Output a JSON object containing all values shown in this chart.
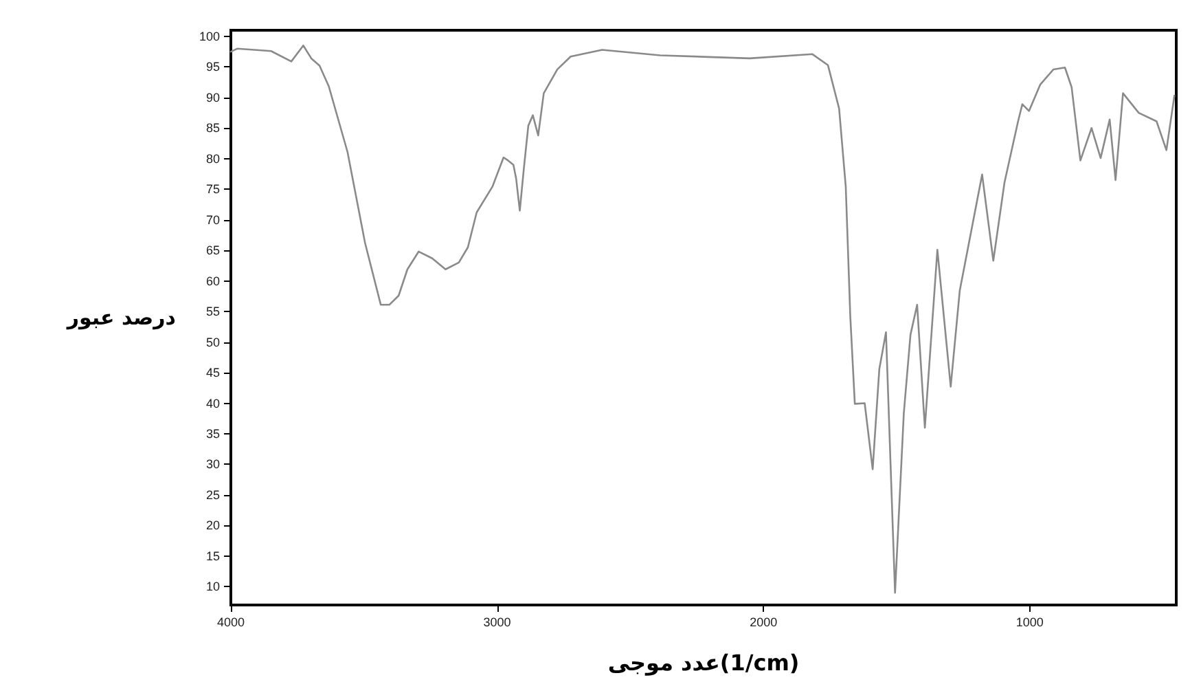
{
  "chart_data": {
    "type": "line",
    "xlabel": "عدد موجی(1/cm)",
    "ylabel": "درصد عبور",
    "x": [
      4000,
      3975,
      3849,
      3773,
      3728,
      3698,
      3667,
      3632,
      3562,
      3496,
      3437,
      3405,
      3370,
      3337,
      3295,
      3244,
      3194,
      3144,
      3110,
      3077,
      3018,
      2976,
      2959,
      2939,
      2929,
      2915,
      2900,
      2883,
      2866,
      2846,
      2825,
      2774,
      2724,
      2606,
      2388,
      2052,
      1817,
      1758,
      1716,
      1691,
      1674,
      1657,
      1620,
      1590,
      1565,
      1540,
      1506,
      1473,
      1448,
      1423,
      1394,
      1347,
      1297,
      1263,
      1179,
      1137,
      1095,
      1044,
      1028,
      1003,
      961,
      911,
      868,
      843,
      810,
      768,
      734,
      700,
      678,
      650,
      591,
      524,
      487,
      457
    ],
    "series": [
      {
        "color": "#8a8a8a",
        "values": [
          97.5,
          98.0,
          97.6,
          95.9,
          98.5,
          96.4,
          95.2,
          91.8,
          81.1,
          66.2,
          56.1,
          56.1,
          57.6,
          61.9,
          64.8,
          63.7,
          61.9,
          63.0,
          65.5,
          71.2,
          75.4,
          80.2,
          79.7,
          79.0,
          76.8,
          71.5,
          78.3,
          85.4,
          87.1,
          83.8,
          90.7,
          94.6,
          96.7,
          97.8,
          96.9,
          96.4,
          97.1,
          95.3,
          88.2,
          75.4,
          54.2,
          39.9,
          40.0,
          29.2,
          45.6,
          51.6,
          9,
          38.4,
          51.2,
          56.1,
          36.0,
          65.1,
          42.7,
          58.4,
          77.4,
          63.3,
          76.1,
          86.1,
          88.9,
          87.8,
          92.1,
          94.6,
          94.9,
          91.7,
          79.7,
          85.0,
          80.1,
          86.4,
          76.5,
          90.7,
          87.5,
          86.1,
          81.4,
          90.3
        ]
      }
    ],
    "xlim": [
      4000,
      450
    ],
    "xticks": [
      4000,
      3000,
      2000,
      1000
    ],
    "ylim": [
      7,
      101
    ],
    "yticks": [
      10,
      15,
      20,
      25,
      30,
      35,
      40,
      45,
      50,
      55,
      60,
      65,
      70,
      75,
      80,
      85,
      90,
      95,
      100
    ],
    "grid": false,
    "marker": "none",
    "line_style": "solid"
  }
}
